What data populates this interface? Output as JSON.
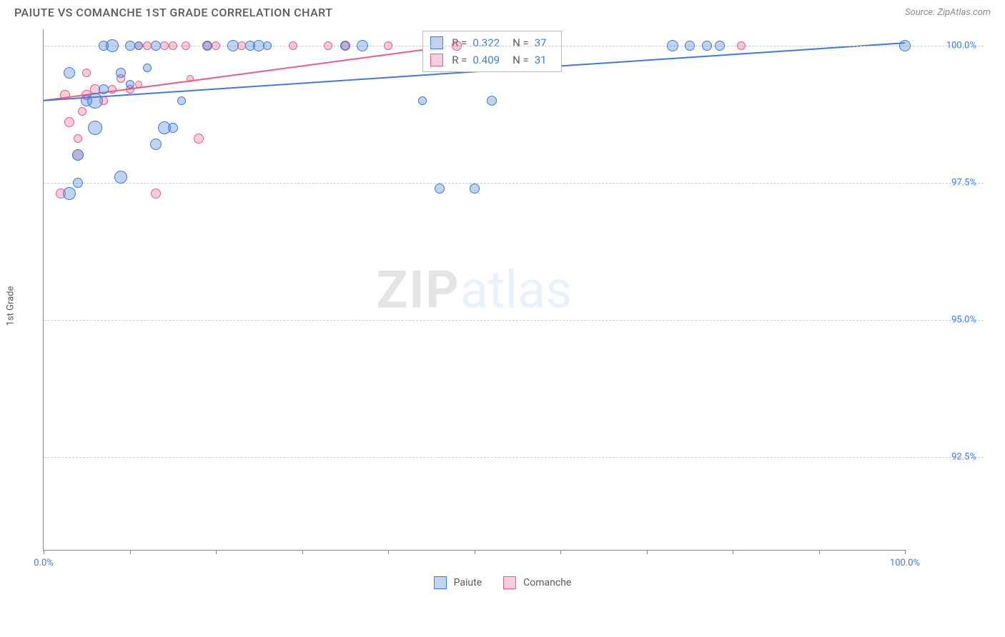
{
  "title": "PAIUTE VS COMANCHE 1ST GRADE CORRELATION CHART",
  "source": "Source: ZipAtlas.com",
  "y_axis_label": "1st Grade",
  "watermark": {
    "part1": "ZIP",
    "part2": "atlas"
  },
  "chart": {
    "type": "scatter",
    "xlim": [
      0,
      100
    ],
    "ylim": [
      90.8,
      100.3
    ],
    "y_ticks": [
      {
        "v": 100.0,
        "label": "100.0%"
      },
      {
        "v": 97.5,
        "label": "97.5%"
      },
      {
        "v": 95.0,
        "label": "95.0%"
      },
      {
        "v": 92.5,
        "label": "92.5%"
      }
    ],
    "x_ticks": [
      0,
      10,
      20,
      30,
      40,
      50,
      60,
      70,
      80,
      90,
      100
    ],
    "x_tick_labels": [
      {
        "v": 0,
        "label": "0.0%"
      },
      {
        "v": 100,
        "label": "100.0%"
      }
    ],
    "background_color": "#ffffff",
    "grid_color": "#cccccc"
  },
  "series": {
    "paiute": {
      "label": "Paiute",
      "color_fill": "rgba(74,128,212,0.35)",
      "color_stroke": "#3b7dd8",
      "marker_size_min": 10,
      "marker_size_max": 22,
      "points": [
        {
          "x": 3,
          "y": 97.3,
          "s": 18
        },
        {
          "x": 4,
          "y": 98.0,
          "s": 16
        },
        {
          "x": 3,
          "y": 99.5,
          "s": 16
        },
        {
          "x": 5,
          "y": 99.0,
          "s": 16
        },
        {
          "x": 7,
          "y": 100.0,
          "s": 14
        },
        {
          "x": 8,
          "y": 100.0,
          "s": 18
        },
        {
          "x": 9,
          "y": 99.5,
          "s": 14
        },
        {
          "x": 10,
          "y": 100.0,
          "s": 14
        },
        {
          "x": 11,
          "y": 100.0,
          "s": 12
        },
        {
          "x": 6,
          "y": 98.5,
          "s": 20
        },
        {
          "x": 7,
          "y": 99.2,
          "s": 14
        },
        {
          "x": 9,
          "y": 97.6,
          "s": 18
        },
        {
          "x": 13,
          "y": 100.0,
          "s": 14
        },
        {
          "x": 14,
          "y": 98.5,
          "s": 18
        },
        {
          "x": 15,
          "y": 98.5,
          "s": 14
        },
        {
          "x": 13,
          "y": 98.2,
          "s": 16
        },
        {
          "x": 16,
          "y": 99.0,
          "s": 12
        },
        {
          "x": 19,
          "y": 100.0,
          "s": 14
        },
        {
          "x": 22,
          "y": 100.0,
          "s": 16
        },
        {
          "x": 24,
          "y": 100.0,
          "s": 14
        },
        {
          "x": 25,
          "y": 100.0,
          "s": 16
        },
        {
          "x": 26,
          "y": 100.0,
          "s": 12
        },
        {
          "x": 35,
          "y": 100.0,
          "s": 14
        },
        {
          "x": 37,
          "y": 100.0,
          "s": 16
        },
        {
          "x": 44,
          "y": 99.0,
          "s": 12
        },
        {
          "x": 46,
          "y": 97.4,
          "s": 14
        },
        {
          "x": 50,
          "y": 97.4,
          "s": 14
        },
        {
          "x": 52,
          "y": 99.0,
          "s": 14
        },
        {
          "x": 73,
          "y": 100.0,
          "s": 16
        },
        {
          "x": 75,
          "y": 100.0,
          "s": 14
        },
        {
          "x": 77,
          "y": 100.0,
          "s": 14
        },
        {
          "x": 78.5,
          "y": 100.0,
          "s": 14
        },
        {
          "x": 100,
          "y": 100.0,
          "s": 16
        },
        {
          "x": 6,
          "y": 99.0,
          "s": 22
        },
        {
          "x": 4,
          "y": 97.5,
          "s": 14
        },
        {
          "x": 10,
          "y": 99.3,
          "s": 12
        },
        {
          "x": 12,
          "y": 99.6,
          "s": 12
        }
      ],
      "trend": {
        "x1": 0,
        "y1": 99.0,
        "x2": 100,
        "y2": 100.05,
        "width": 2
      }
    },
    "comanche": {
      "label": "Comanche",
      "color_fill": "rgba(233,93,140,0.3)",
      "color_stroke": "#e85b8c",
      "marker_size_min": 8,
      "marker_size_max": 18,
      "points": [
        {
          "x": 2,
          "y": 97.3,
          "s": 14
        },
        {
          "x": 3,
          "y": 98.6,
          "s": 14
        },
        {
          "x": 2.5,
          "y": 99.1,
          "s": 14
        },
        {
          "x": 4,
          "y": 98.3,
          "s": 12
        },
        {
          "x": 4,
          "y": 98.0,
          "s": 16
        },
        {
          "x": 5,
          "y": 99.1,
          "s": 14
        },
        {
          "x": 5,
          "y": 99.5,
          "s": 12
        },
        {
          "x": 6,
          "y": 99.2,
          "s": 14
        },
        {
          "x": 7,
          "y": 99.0,
          "s": 12
        },
        {
          "x": 8,
          "y": 99.2,
          "s": 12
        },
        {
          "x": 9,
          "y": 99.4,
          "s": 12
        },
        {
          "x": 10,
          "y": 99.2,
          "s": 12
        },
        {
          "x": 11,
          "y": 99.3,
          "s": 10
        },
        {
          "x": 11,
          "y": 100.0,
          "s": 12
        },
        {
          "x": 12,
          "y": 100.0,
          "s": 12
        },
        {
          "x": 13,
          "y": 97.3,
          "s": 14
        },
        {
          "x": 14,
          "y": 100.0,
          "s": 12
        },
        {
          "x": 15,
          "y": 100.0,
          "s": 12
        },
        {
          "x": 16.5,
          "y": 100.0,
          "s": 12
        },
        {
          "x": 17,
          "y": 99.4,
          "s": 10
        },
        {
          "x": 18,
          "y": 98.3,
          "s": 14
        },
        {
          "x": 19,
          "y": 100.0,
          "s": 12
        },
        {
          "x": 20,
          "y": 100.0,
          "s": 12
        },
        {
          "x": 23,
          "y": 100.0,
          "s": 12
        },
        {
          "x": 29,
          "y": 100.0,
          "s": 12
        },
        {
          "x": 33,
          "y": 100.0,
          "s": 12
        },
        {
          "x": 35,
          "y": 100.0,
          "s": 12
        },
        {
          "x": 40,
          "y": 100.0,
          "s": 12
        },
        {
          "x": 48,
          "y": 100.0,
          "s": 14
        },
        {
          "x": 81,
          "y": 100.0,
          "s": 12
        },
        {
          "x": 4.5,
          "y": 98.8,
          "s": 12
        }
      ],
      "trend": {
        "x1": 0,
        "y1": 99.0,
        "x2": 50,
        "y2": 100.05,
        "width": 2
      }
    }
  },
  "stats_box": {
    "rows": [
      {
        "swatch_fill": "rgba(74,128,212,0.35)",
        "swatch_border": "#3b7dd8",
        "r": "0.322",
        "n": "37"
      },
      {
        "swatch_fill": "rgba(233,93,140,0.3)",
        "swatch_border": "#e85b8c",
        "r": "0.409",
        "n": "31"
      }
    ],
    "r_label": "R =",
    "n_label": "N ="
  },
  "legend": {
    "paiute": "Paiute",
    "comanche": "Comanche"
  }
}
